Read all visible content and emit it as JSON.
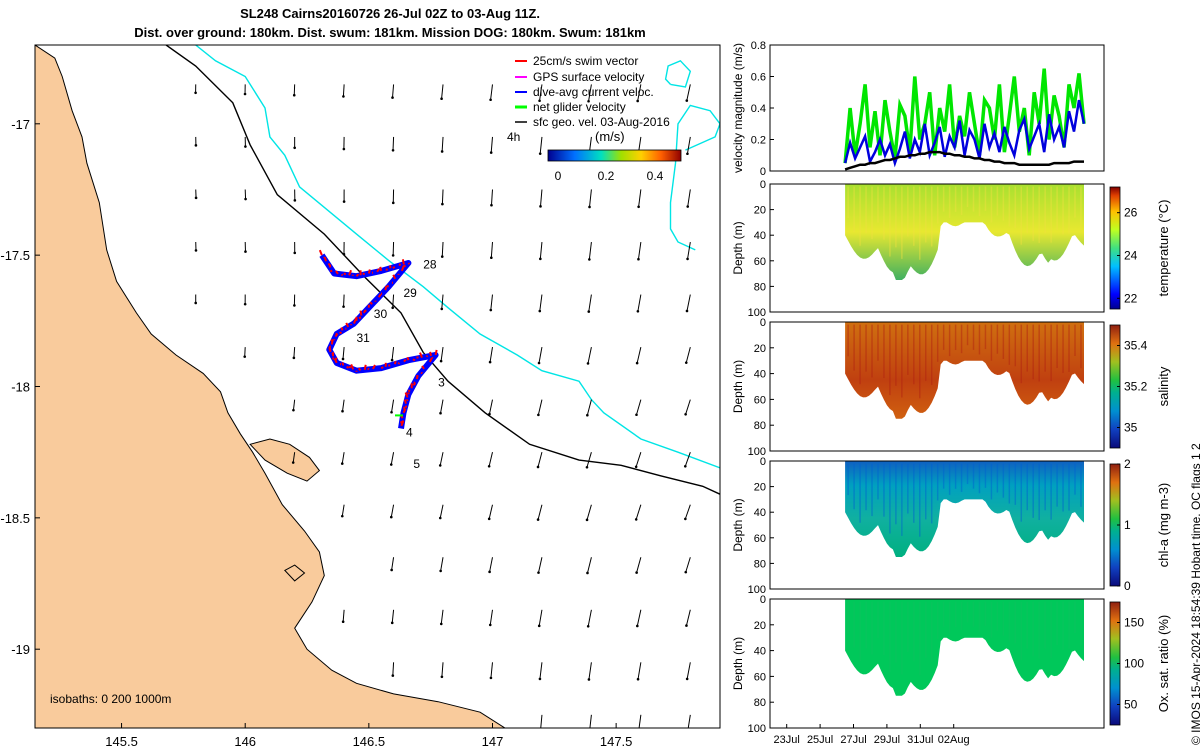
{
  "header": {
    "title_line1": "SL248 Cairns20160726 26-Jul 02Z to 03-Aug 11Z.",
    "title_line2": "Dist. over ground: 180km. Dist. swum: 181km. Mission DOG: 180km. Swum: 181km"
  },
  "stamp": "© IMOS 15-Apr-2024 18:54:39 Hobart time. QC flags 1  2",
  "colors": {
    "land": "#f9cb9c",
    "swim": "#ff0000",
    "gps": "#ff00ff",
    "current": "#0000ff",
    "net": "#00ff00",
    "contour_200": "#000000",
    "contour_1000": "#00e5e5",
    "velocity_net": "#00e600",
    "velocity_current": "#0000dd",
    "velocity_geo": "#000000",
    "oxygen_fill": "#00c85a"
  },
  "chart_data": [
    {
      "type": "map",
      "xlim": [
        145.15,
        147.92
      ],
      "ylim": [
        -19.3,
        -16.7
      ],
      "xticks": [
        145.5,
        146,
        146.5,
        147,
        147.5
      ],
      "yticks": [
        -17,
        -17.5,
        -18,
        -18.5,
        -19
      ],
      "legend": {
        "placement": "top-right",
        "items": [
          "25cm/s swim vector",
          "GPS surface velocity",
          "dive-avg current veloc.",
          "net glider velocity",
          "sfc geo. vel. 03-Aug-2016"
        ],
        "speed_label": "4h",
        "colorbar_label": "(m/s)",
        "colorbar_ticks": [
          "0",
          "0.2",
          "0.4"
        ]
      },
      "isobaths_label": "isobaths: 0   200   1000m",
      "day_labels": [
        {
          "text": "28",
          "lon": 146.72,
          "lat": -17.55
        },
        {
          "text": "29",
          "lon": 146.64,
          "lat": -17.66
        },
        {
          "text": "30",
          "lon": 146.52,
          "lat": -17.74
        },
        {
          "text": "31",
          "lon": 146.45,
          "lat": -17.83
        },
        {
          "text": "3",
          "lon": 146.78,
          "lat": -18.0
        },
        {
          "text": "4",
          "lon": 146.65,
          "lat": -18.19
        },
        {
          "text": "5",
          "lon": 146.68,
          "lat": -18.31
        }
      ],
      "glider_track": [
        [
          146.31,
          -17.5
        ],
        [
          146.36,
          -17.57
        ],
        [
          146.45,
          -17.58
        ],
        [
          146.55,
          -17.56
        ],
        [
          146.66,
          -17.53
        ],
        [
          146.58,
          -17.62
        ],
        [
          146.5,
          -17.7
        ],
        [
          146.44,
          -17.76
        ],
        [
          146.37,
          -17.8
        ],
        [
          146.34,
          -17.86
        ],
        [
          146.37,
          -17.91
        ],
        [
          146.45,
          -17.94
        ],
        [
          146.55,
          -17.93
        ],
        [
          146.66,
          -17.9
        ],
        [
          146.77,
          -17.88
        ],
        [
          146.7,
          -17.96
        ],
        [
          146.66,
          -18.03
        ],
        [
          146.64,
          -18.1
        ],
        [
          146.63,
          -18.16
        ]
      ],
      "coast": [
        [
          145.15,
          -16.7
        ],
        [
          145.23,
          -16.75
        ],
        [
          145.26,
          -16.82
        ],
        [
          145.3,
          -16.95
        ],
        [
          145.34,
          -17.05
        ],
        [
          145.36,
          -17.15
        ],
        [
          145.41,
          -17.3
        ],
        [
          145.44,
          -17.48
        ],
        [
          145.48,
          -17.6
        ],
        [
          145.56,
          -17.72
        ],
        [
          145.62,
          -17.8
        ],
        [
          145.72,
          -17.88
        ],
        [
          145.83,
          -17.95
        ],
        [
          145.9,
          -18.02
        ],
        [
          145.93,
          -18.1
        ],
        [
          145.98,
          -18.18
        ],
        [
          146.03,
          -18.25
        ],
        [
          146.08,
          -18.33
        ],
        [
          146.15,
          -18.45
        ],
        [
          146.24,
          -18.55
        ],
        [
          146.3,
          -18.63
        ],
        [
          146.32,
          -18.72
        ],
        [
          146.27,
          -18.82
        ],
        [
          146.2,
          -18.92
        ],
        [
          146.25,
          -19.0
        ],
        [
          146.35,
          -19.08
        ],
        [
          146.45,
          -19.13
        ],
        [
          146.6,
          -19.17
        ],
        [
          146.78,
          -19.2
        ],
        [
          146.95,
          -19.24
        ],
        [
          147.05,
          -19.3
        ]
      ],
      "contour_200": [
        [
          145.68,
          -16.7
        ],
        [
          145.8,
          -16.78
        ],
        [
          145.95,
          -16.92
        ],
        [
          146.02,
          -17.08
        ],
        [
          146.13,
          -17.27
        ],
        [
          146.32,
          -17.42
        ],
        [
          146.48,
          -17.58
        ],
        [
          146.63,
          -17.72
        ],
        [
          146.72,
          -17.87
        ],
        [
          146.82,
          -17.98
        ],
        [
          146.97,
          -18.1
        ],
        [
          147.15,
          -18.22
        ],
        [
          147.35,
          -18.28
        ],
        [
          147.52,
          -18.3
        ],
        [
          147.68,
          -18.34
        ],
        [
          147.85,
          -18.38
        ],
        [
          147.92,
          -18.41
        ]
      ],
      "contour_1000": [
        [
          145.8,
          -16.7
        ],
        [
          145.88,
          -16.76
        ],
        [
          146.0,
          -16.82
        ],
        [
          146.08,
          -16.94
        ],
        [
          146.1,
          -17.05
        ],
        [
          146.16,
          -17.12
        ],
        [
          146.22,
          -17.24
        ],
        [
          146.45,
          -17.42
        ],
        [
          146.58,
          -17.52
        ],
        [
          146.72,
          -17.62
        ],
        [
          146.82,
          -17.7
        ],
        [
          146.95,
          -17.8
        ],
        [
          147.1,
          -17.88
        ],
        [
          147.2,
          -17.94
        ],
        [
          147.35,
          -17.98
        ],
        [
          147.4,
          -18.05
        ],
        [
          147.45,
          -18.1
        ],
        [
          147.6,
          -18.2
        ],
        [
          147.75,
          -18.25
        ],
        [
          147.92,
          -18.31
        ]
      ],
      "contour_1000_eddy": [
        [
          147.78,
          -17.1
        ],
        [
          147.9,
          -17.05
        ],
        [
          147.92,
          -17.0
        ],
        [
          147.88,
          -16.95
        ],
        [
          147.8,
          -16.93
        ],
        [
          147.75,
          -17.0
        ],
        [
          147.74,
          -17.15
        ],
        [
          147.72,
          -17.3
        ],
        [
          147.72,
          -17.4
        ],
        [
          147.75,
          -17.45
        ],
        [
          147.82,
          -17.48
        ]
      ],
      "contour_1000_ring": [
        [
          147.72,
          -16.85
        ],
        [
          147.78,
          -16.86
        ],
        [
          147.8,
          -16.8
        ],
        [
          147.76,
          -16.76
        ],
        [
          147.71,
          -16.78
        ],
        [
          147.7,
          -16.83
        ],
        [
          147.72,
          -16.85
        ]
      ],
      "island": [
        [
          146.02,
          -18.22
        ],
        [
          146.1,
          -18.2
        ],
        [
          146.18,
          -18.22
        ],
        [
          146.26,
          -18.27
        ],
        [
          146.3,
          -18.32
        ],
        [
          146.25,
          -18.36
        ],
        [
          146.17,
          -18.33
        ],
        [
          146.08,
          -18.28
        ],
        [
          146.02,
          -18.22
        ]
      ],
      "isle_small": [
        [
          146.16,
          -18.7
        ],
        [
          146.2,
          -18.68
        ],
        [
          146.24,
          -18.71
        ],
        [
          146.2,
          -18.74
        ],
        [
          146.16,
          -18.7
        ]
      ],
      "arrow_grid": {
        "lon_start": 145.8,
        "lon_step": 0.2,
        "lat_start": -16.85,
        "lat_step": 0.2
      }
    },
    {
      "type": "line",
      "x": [
        0,
        1,
        2,
        3,
        4,
        5,
        6,
        7,
        8,
        9,
        10,
        11,
        12,
        13,
        14,
        15,
        16,
        17,
        18,
        19,
        20,
        21,
        22,
        23,
        24,
        25,
        26,
        27,
        28,
        29,
        30,
        31,
        32,
        33,
        34,
        35,
        36,
        37,
        38,
        39,
        40,
        41,
        42,
        43,
        44,
        45,
        46,
        47,
        48
      ],
      "xlim": [
        "22Jul",
        "11Aug"
      ],
      "ylim": [
        0,
        0.8
      ],
      "yticks": [
        0,
        0.2,
        0.4,
        0.6,
        0.8
      ],
      "ylabel": "velocity magnitude (m/s)",
      "series": [
        {
          "values": [
            0.05,
            0.4,
            0.1,
            0.3,
            0.55,
            0.15,
            0.38,
            0.1,
            0.45,
            0.25,
            0.08,
            0.42,
            0.35,
            0.12,
            0.6,
            0.2,
            0.3,
            0.5,
            0.1,
            0.4,
            0.25,
            0.55,
            0.15,
            0.35,
            0.22,
            0.5,
            0.3,
            0.1,
            0.45,
            0.4,
            0.2,
            0.55,
            0.12,
            0.35,
            0.6,
            0.25,
            0.4,
            0.1,
            0.5,
            0.3,
            0.65,
            0.2,
            0.48,
            0.35,
            0.15,
            0.55,
            0.4,
            0.62,
            0.3
          ]
        },
        {
          "values": [
            0.05,
            0.18,
            0.08,
            0.15,
            0.22,
            0.06,
            0.12,
            0.2,
            0.1,
            0.17,
            0.05,
            0.14,
            0.25,
            0.08,
            0.2,
            0.12,
            0.3,
            0.1,
            0.18,
            0.28,
            0.09,
            0.22,
            0.15,
            0.32,
            0.1,
            0.26,
            0.2,
            0.08,
            0.3,
            0.15,
            0.24,
            0.12,
            0.28,
            0.18,
            0.1,
            0.26,
            0.33,
            0.14,
            0.22,
            0.3,
            0.12,
            0.36,
            0.2,
            0.28,
            0.15,
            0.38,
            0.25,
            0.45,
            0.3
          ]
        },
        {
          "values": [
            0.01,
            0.02,
            0.03,
            0.04,
            0.04,
            0.05,
            0.05,
            0.06,
            0.07,
            0.07,
            0.08,
            0.09,
            0.09,
            0.1,
            0.1,
            0.11,
            0.11,
            0.12,
            0.12,
            0.12,
            0.11,
            0.11,
            0.1,
            0.1,
            0.09,
            0.09,
            0.08,
            0.08,
            0.07,
            0.07,
            0.06,
            0.06,
            0.05,
            0.05,
            0.05,
            0.04,
            0.04,
            0.04,
            0.04,
            0.04,
            0.04,
            0.04,
            0.05,
            0.05,
            0.05,
            0.05,
            0.06,
            0.06,
            0.06
          ]
        }
      ]
    },
    {
      "type": "heatmap",
      "ylabel": "Depth (m)",
      "ylim": [
        0,
        100
      ],
      "yticks": [
        0,
        20,
        40,
        60,
        80,
        100
      ],
      "colorbar_label": "temperature (°C)",
      "colorbar_ticks": [
        "22",
        "24",
        "26"
      ],
      "colorbar_range": [
        21.5,
        27.2
      ],
      "cmap": "jet"
    },
    {
      "type": "heatmap",
      "ylabel": "Depth (m)",
      "ylim": [
        0,
        100
      ],
      "yticks": [
        0,
        20,
        40,
        60,
        80,
        100
      ],
      "colorbar_label": "salinity",
      "colorbar_ticks": [
        "35",
        "35.2",
        "35.4"
      ],
      "colorbar_range": [
        34.9,
        35.5
      ],
      "cmap": "haline"
    },
    {
      "type": "heatmap",
      "ylabel": "Depth (m)",
      "ylim": [
        0,
        100
      ],
      "yticks": [
        0,
        20,
        40,
        60,
        80,
        100
      ],
      "colorbar_label": "chl-a (mg m-3)",
      "colorbar_ticks": [
        "0",
        "1",
        "2"
      ],
      "colorbar_range": [
        0,
        2
      ],
      "cmap": "haline"
    },
    {
      "type": "heatmap",
      "ylabel": "Depth (m)",
      "ylim": [
        0,
        100
      ],
      "yticks": [
        0,
        20,
        40,
        60,
        80,
        100
      ],
      "colorbar_label": "Ox. sat. ratio (%)",
      "colorbar_ticks": [
        "50",
        "100",
        "150"
      ],
      "colorbar_range": [
        25,
        175
      ],
      "cmap": "haline"
    }
  ],
  "time_axis": {
    "labels": [
      "23Jul",
      "25Jul",
      "27Jul",
      "29Jul",
      "31Jul",
      "02Aug"
    ]
  }
}
